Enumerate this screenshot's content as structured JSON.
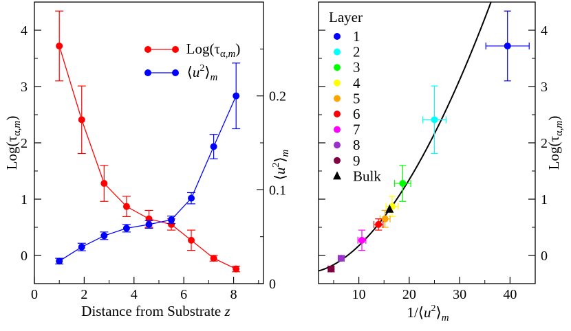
{
  "chart_data": [
    {
      "type": "line",
      "panel": "left",
      "xlabel": "Distance from Substrate z",
      "ylabel": "Log(τα,m)",
      "ylabel_right": "⟨u²⟩m",
      "xlim": [
        0,
        9.2
      ],
      "ylim": [
        -0.5,
        4.5
      ],
      "ylim_right": [
        0,
        0.3
      ],
      "xticks": [
        "0",
        "2",
        "4",
        "6",
        "8"
      ],
      "yticks": [
        "0",
        "1",
        "2",
        "3",
        "4"
      ],
      "yticks_right": [
        "0",
        "0.1",
        "0.2"
      ],
      "legend_position": "top-right",
      "x": [
        1.0,
        1.9,
        2.8,
        3.7,
        4.6,
        5.5,
        6.3,
        7.2,
        8.1
      ],
      "series": [
        {
          "name": "Log(τα,m)",
          "color": "#ff0000",
          "axis": "left",
          "values": [
            3.72,
            2.41,
            1.28,
            0.87,
            0.65,
            0.55,
            0.27,
            -0.05,
            -0.24
          ],
          "errors": [
            0.62,
            0.6,
            0.32,
            0.18,
            0.15,
            0.1,
            0.18,
            0.05,
            0.05
          ]
        },
        {
          "name": "⟨u²⟩m",
          "color": "#0000ff",
          "axis": "right",
          "values": [
            0.024,
            0.039,
            0.051,
            0.059,
            0.063,
            0.068,
            0.091,
            0.146,
            0.2
          ],
          "errors": [
            0.003,
            0.004,
            0.004,
            0.004,
            0.004,
            0.004,
            0.006,
            0.013,
            0.035
          ]
        }
      ]
    },
    {
      "type": "scatter",
      "panel": "right",
      "xlabel": "1/⟨u²⟩m",
      "ylabel": "Log(τα,m)",
      "xlim": [
        2,
        45
      ],
      "ylim": [
        -0.5,
        4.5
      ],
      "xticks": [
        "10",
        "20",
        "30",
        "40"
      ],
      "yticks": [
        "0",
        "1",
        "2",
        "3",
        "4"
      ],
      "legend_title": "Layer",
      "legend_position": "top-left",
      "fit_curve": "Log(τ) = -0.3 + 0.0075·x^1.8",
      "points": [
        {
          "label": "1",
          "color": "#0000ff",
          "marker": "circle",
          "x": 39.5,
          "y": 3.72,
          "xerr": 4.3,
          "yerr": 0.62
        },
        {
          "label": "2",
          "color": "#00ffff",
          "marker": "circle",
          "x": 25.0,
          "y": 2.41,
          "xerr": 2.3,
          "yerr": 0.6
        },
        {
          "label": "3",
          "color": "#00ff00",
          "marker": "circle",
          "x": 18.7,
          "y": 1.28,
          "xerr": 1.6,
          "yerr": 0.32
        },
        {
          "label": "4",
          "color": "#ffff00",
          "marker": "circle",
          "x": 16.6,
          "y": 0.87,
          "xerr": 1.2,
          "yerr": 0.18
        },
        {
          "label": "5",
          "color": "#ffa500",
          "marker": "circle",
          "x": 15.2,
          "y": 0.65,
          "xerr": 1.0,
          "yerr": 0.15
        },
        {
          "label": "6",
          "color": "#ff0000",
          "marker": "circle",
          "x": 13.9,
          "y": 0.55,
          "xerr": 0.9,
          "yerr": 0.1
        },
        {
          "label": "7",
          "color": "#ff00ff",
          "marker": "circle",
          "x": 10.6,
          "y": 0.27,
          "xerr": 0.8,
          "yerr": 0.18
        },
        {
          "label": "8",
          "color": "#9932cc",
          "marker": "circle",
          "x": 6.5,
          "y": -0.05,
          "xerr": 0.6,
          "yerr": 0.05
        },
        {
          "label": "9",
          "color": "#800040",
          "marker": "circle",
          "x": 4.5,
          "y": -0.24,
          "xerr": 0.6,
          "yerr": 0.05
        },
        {
          "label": "Bulk",
          "color": "#000000",
          "marker": "triangle",
          "x": 16.1,
          "y": 0.82,
          "xerr": 0,
          "yerr": 0
        }
      ]
    }
  ]
}
